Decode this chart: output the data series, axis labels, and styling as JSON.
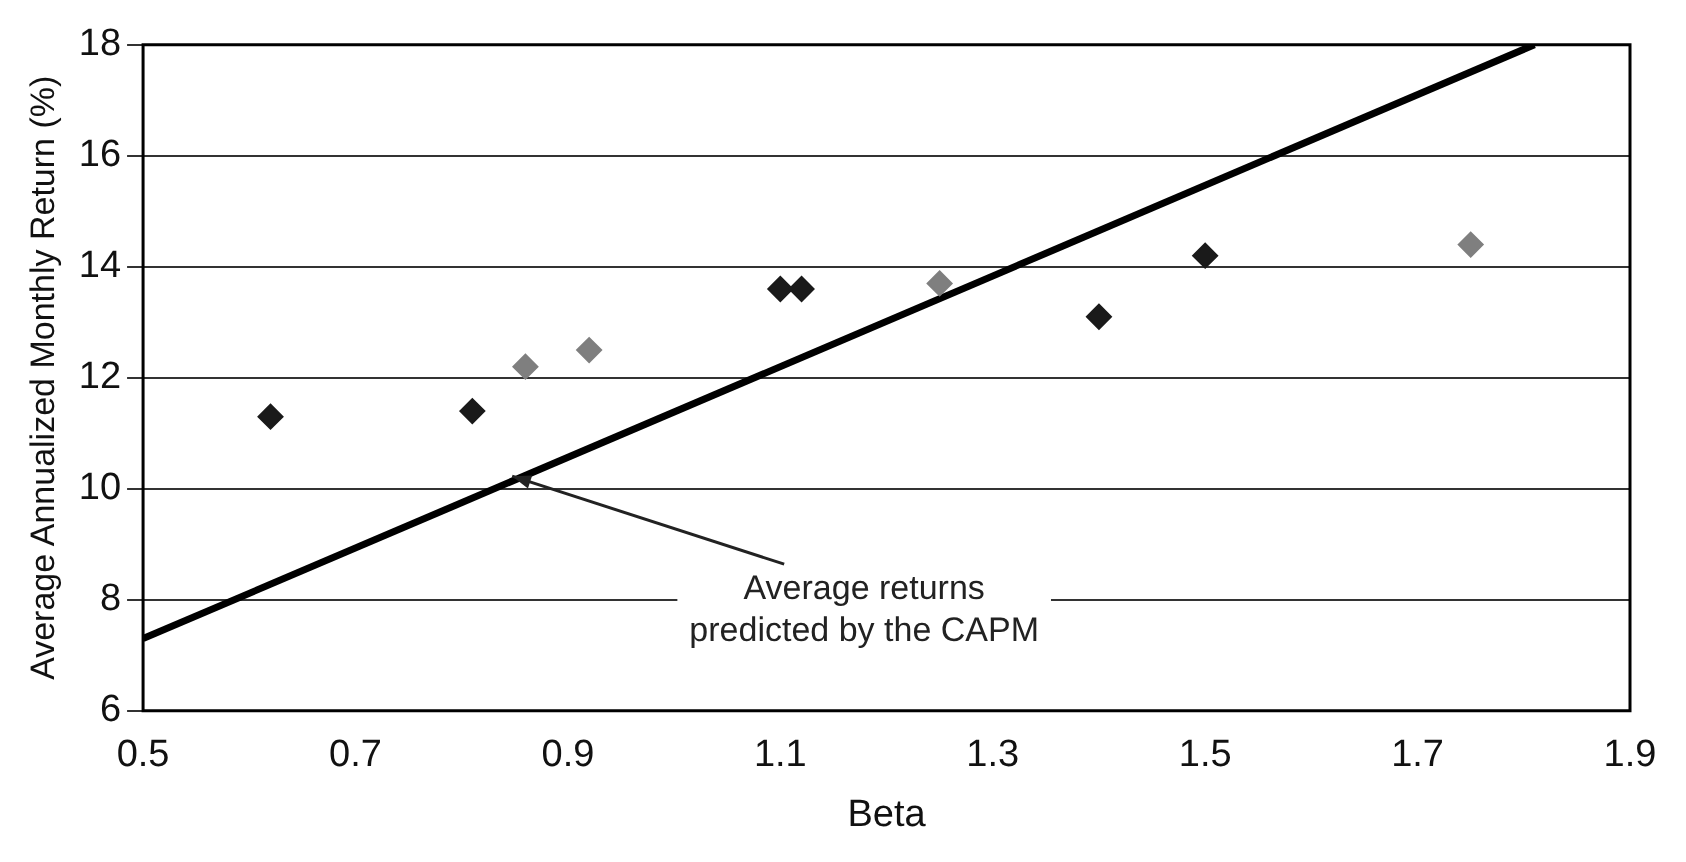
{
  "chart_data": {
    "type": "scatter",
    "xlabel": "Beta",
    "ylabel": "Average Annualized Monthly Return (%)",
    "series": [
      {
        "color": "#1a1a1a",
        "x": [
          0.62,
          0.81,
          1.1,
          1.12,
          1.4,
          1.5
        ],
        "values": [
          11.3,
          11.4,
          13.6,
          13.6,
          13.1,
          14.2
        ]
      },
      {
        "color": "#7f7f7f",
        "x": [
          0.86,
          0.92,
          1.25,
          1.75
        ],
        "values": [
          12.2,
          12.5,
          13.7,
          14.4
        ]
      },
      {
        "type": "line",
        "color": "#000000",
        "x": [
          0.5,
          1.81
        ],
        "values": [
          7.3,
          18
        ],
        "marker": "none"
      }
    ],
    "annotations": [
      {
        "text": "Average returns predicted by the CAPM",
        "x": 0.84,
        "y": 10.3
      }
    ],
    "xlim": [
      0.5,
      1.9
    ],
    "xticks": [
      0.5,
      0.7,
      0.9,
      1.1,
      1.3,
      1.5,
      1.7,
      1.9
    ],
    "ylim": [
      6,
      18
    ],
    "yticks": [
      6,
      8,
      10,
      12,
      14,
      16,
      18
    ],
    "grid": "y",
    "legend": false,
    "marker": "diamond"
  }
}
